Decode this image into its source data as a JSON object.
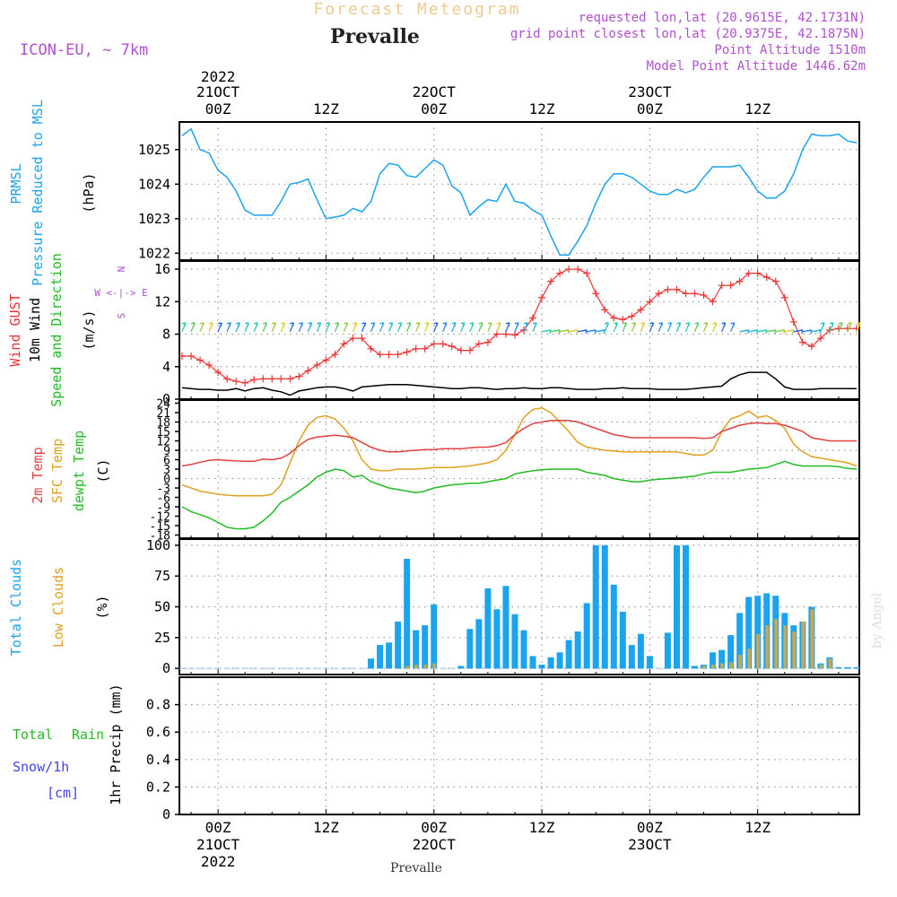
{
  "header": {
    "title": "Forecast Meteogram",
    "location": "Prevalle",
    "model": "ICON-EU, ~ 7km",
    "requested": "requested lon,lat (20.9615E, 42.1731N)",
    "gridpoint": "grid point closest lon,lat (20.9375E, 42.1875N)",
    "point_alt": "Point Altitude 1510m",
    "model_alt": "Model Point Altitude 1446.62m",
    "footer_location": "Prevalle",
    "watermark": "by Angel"
  },
  "colors": {
    "prmsl": "#1aa3ee",
    "gust": "#ee3333",
    "wind": "#000000",
    "temp2m": "#e34040",
    "sfc": "#e0a020",
    "dewpt": "#22bb22",
    "total_clouds": "#1aa3ee",
    "low_clouds": "#c8a850",
    "label_purple": "#b050d0",
    "snow": "#4444ee"
  },
  "time_axis": {
    "top": [
      {
        "h": 0,
        "line1": "2022",
        "line2": "21OCT",
        "line3": "00Z"
      },
      {
        "h": 12,
        "line1": "",
        "line2": "",
        "line3": "12Z"
      },
      {
        "h": 24,
        "line1": "",
        "line2": "22OCT",
        "line3": "00Z"
      },
      {
        "h": 36,
        "line1": "",
        "line2": "",
        "line3": "12Z"
      },
      {
        "h": 48,
        "line1": "",
        "line2": "23OCT",
        "line3": "00Z"
      },
      {
        "h": 60,
        "line1": "",
        "line2": "",
        "line3": "12Z"
      }
    ],
    "bottom": [
      {
        "h": 0,
        "line1": "00Z",
        "line2": "21OCT",
        "line3": "2022"
      },
      {
        "h": 12,
        "line1": "12Z",
        "line2": "",
        "line3": ""
      },
      {
        "h": 24,
        "line1": "00Z",
        "line2": "22OCT",
        "line3": ""
      },
      {
        "h": 36,
        "line1": "12Z",
        "line2": "",
        "line3": ""
      },
      {
        "h": 48,
        "line1": "00Z",
        "line2": "23OCT",
        "line3": ""
      },
      {
        "h": 60,
        "line1": "12Z",
        "line2": "",
        "line3": ""
      }
    ]
  },
  "panels": {
    "pressure": {
      "label1": "PRMSL",
      "label2": "Pressure Reduced to MSL",
      "unit": "(hPa)",
      "ticks": [
        "1022",
        "1023",
        "1024",
        "1025"
      ]
    },
    "wind": {
      "label1": "Wind GUST",
      "label2": "10m Wind",
      "label3": "Speed and Direction",
      "unit": "(m/s)",
      "compass_n": "N",
      "compass_we": "W <-|-> E",
      "compass_s": "S",
      "ticks": [
        "0",
        "4",
        "8",
        "12",
        "16"
      ]
    },
    "temp": {
      "label1": "2m Temp",
      "label2": "SFC Temp",
      "label3": "dewpt Temp",
      "unit": "(C)",
      "ticks": [
        "-18",
        "-15",
        "-12",
        "-9",
        "-6",
        "-3",
        "0",
        "3",
        "6",
        "9",
        "12",
        "15",
        "18",
        "21",
        "24"
      ]
    },
    "clouds": {
      "label1": "Total Clouds",
      "label2": "Low Clouds",
      "unit": "(%)",
      "ticks": [
        "0",
        "25",
        "50",
        "75",
        "100"
      ]
    },
    "precip": {
      "label_total": "Total",
      "label_rain": "Rain",
      "label_snow": "Snow/1h",
      "label_cm": "[cm]",
      "unit": "1hr Precip (mm)",
      "ticks": [
        "0",
        "0.2",
        "0.4",
        "0.6",
        "0.8"
      ]
    }
  },
  "chart_data": [
    {
      "type": "line",
      "title": "PRMSL Pressure Reduced to MSL",
      "ylabel": "hPa",
      "ylim": [
        1021.8,
        1025.8
      ],
      "x": [
        -4,
        -3,
        -2,
        -1,
        0,
        1,
        2,
        3,
        4,
        5,
        6,
        7,
        8,
        9,
        10,
        11,
        12,
        13,
        14,
        15,
        16,
        17,
        18,
        19,
        20,
        21,
        22,
        23,
        24,
        25,
        26,
        27,
        28,
        29,
        30,
        31,
        32,
        33,
        34,
        35,
        36,
        37,
        38,
        39,
        40,
        41,
        42,
        43,
        44,
        45,
        46,
        47,
        48,
        49,
        50,
        51,
        52,
        53,
        54,
        55,
        56,
        57,
        58,
        59,
        60,
        61,
        62,
        63,
        64,
        65,
        66,
        67,
        68,
        69,
        70,
        71
      ],
      "series": [
        {
          "name": "PRMSL",
          "values": [
            1025.4,
            1025.6,
            1025.0,
            1024.9,
            1024.4,
            1024.2,
            1023.8,
            1023.25,
            1023.1,
            1023.1,
            1023.1,
            1023.5,
            1024.0,
            1024.05,
            1024.15,
            1023.55,
            1023.0,
            1023.05,
            1023.1,
            1023.3,
            1023.2,
            1023.5,
            1024.3,
            1024.6,
            1024.55,
            1024.25,
            1024.2,
            1024.45,
            1024.7,
            1024.55,
            1023.95,
            1023.75,
            1023.1,
            1023.35,
            1023.55,
            1023.5,
            1024.0,
            1023.5,
            1023.45,
            1023.25,
            1023.1,
            1022.5,
            1021.95,
            1021.95,
            1022.35,
            1022.8,
            1023.45,
            1024.0,
            1024.3,
            1024.3,
            1024.2,
            1024.0,
            1023.8,
            1023.7,
            1023.7,
            1023.85,
            1023.75,
            1023.85,
            1024.2,
            1024.5,
            1024.5,
            1024.5,
            1024.55,
            1024.2,
            1023.8,
            1023.6,
            1023.6,
            1023.8,
            1024.3,
            1025.0,
            1025.45,
            1025.4,
            1025.4,
            1025.45,
            1025.25,
            1025.2
          ]
        }
      ]
    },
    {
      "type": "line",
      "title": "Wind GUST / 10m Wind Speed",
      "ylabel": "m/s",
      "ylim": [
        0,
        17
      ],
      "x": [
        -4,
        -3,
        -2,
        -1,
        0,
        1,
        2,
        3,
        4,
        5,
        6,
        7,
        8,
        9,
        10,
        11,
        12,
        13,
        14,
        15,
        16,
        17,
        18,
        19,
        20,
        21,
        22,
        23,
        24,
        25,
        26,
        27,
        28,
        29,
        30,
        31,
        32,
        33,
        34,
        35,
        36,
        37,
        38,
        39,
        40,
        41,
        42,
        43,
        44,
        45,
        46,
        47,
        48,
        49,
        50,
        51,
        52,
        53,
        54,
        55,
        56,
        57,
        58,
        59,
        60,
        61,
        62,
        63,
        64,
        65,
        66,
        67,
        68,
        69,
        70,
        71
      ],
      "series": [
        {
          "name": "Wind GUST",
          "values": [
            5.3,
            5.3,
            4.8,
            4.2,
            3.3,
            2.5,
            2.2,
            2.0,
            2.4,
            2.5,
            2.5,
            2.5,
            2.5,
            2.8,
            3.5,
            4.2,
            4.8,
            5.5,
            6.8,
            7.5,
            7.5,
            6.2,
            5.5,
            5.5,
            5.5,
            5.8,
            6.2,
            6.2,
            6.8,
            6.8,
            6.5,
            6.0,
            6.0,
            6.8,
            7.0,
            8.0,
            8.0,
            7.9,
            8.5,
            10.0,
            12.5,
            14.5,
            15.5,
            16.0,
            16.0,
            15.5,
            13.0,
            11.0,
            10.0,
            9.8,
            10.2,
            11.0,
            12.0,
            13.0,
            13.5,
            13.5,
            13.0,
            13.0,
            12.8,
            12.0,
            14.0,
            14.0,
            14.5,
            15.5,
            15.5,
            15.0,
            14.5,
            12.5,
            9.5,
            7.0,
            6.5,
            7.5,
            8.5,
            8.7,
            8.7,
            8.7
          ]
        },
        {
          "name": "10m Wind",
          "values": [
            1.4,
            1.3,
            1.2,
            1.2,
            1.1,
            1.1,
            1.3,
            1.0,
            1.3,
            1.4,
            1.1,
            0.9,
            0.5,
            1.0,
            1.2,
            1.4,
            1.5,
            1.5,
            1.3,
            1.0,
            1.5,
            1.6,
            1.7,
            1.8,
            1.8,
            1.8,
            1.7,
            1.6,
            1.5,
            1.4,
            1.3,
            1.3,
            1.4,
            1.4,
            1.3,
            1.2,
            1.3,
            1.3,
            1.4,
            1.3,
            1.3,
            1.4,
            1.4,
            1.3,
            1.2,
            1.2,
            1.2,
            1.3,
            1.3,
            1.4,
            1.3,
            1.3,
            1.3,
            1.2,
            1.2,
            1.2,
            1.2,
            1.3,
            1.4,
            1.5,
            1.6,
            2.5,
            3.0,
            3.3,
            3.3,
            3.3,
            2.5,
            1.5,
            1.2,
            1.2,
            1.2,
            1.3,
            1.3,
            1.3,
            1.3,
            1.3
          ]
        }
      ]
    },
    {
      "type": "line",
      "title": "2m Temp / SFC Temp / dewpt Temp",
      "ylabel": "C",
      "ylim": [
        -19,
        25
      ],
      "x": [
        -4,
        -3,
        -2,
        -1,
        0,
        1,
        2,
        3,
        4,
        5,
        6,
        7,
        8,
        9,
        10,
        11,
        12,
        13,
        14,
        15,
        16,
        17,
        18,
        19,
        20,
        21,
        22,
        23,
        24,
        25,
        26,
        27,
        28,
        29,
        30,
        31,
        32,
        33,
        34,
        35,
        36,
        37,
        38,
        39,
        40,
        41,
        42,
        43,
        44,
        45,
        46,
        47,
        48,
        49,
        50,
        51,
        52,
        53,
        54,
        55,
        56,
        57,
        58,
        59,
        60,
        61,
        62,
        63,
        64,
        65,
        66,
        67,
        68,
        69,
        70,
        71
      ],
      "series": [
        {
          "name": "2m Temp",
          "values": [
            4.0,
            4.5,
            5.2,
            5.8,
            6.0,
            5.8,
            5.6,
            5.5,
            5.5,
            6.2,
            6.0,
            6.5,
            8.0,
            10.5,
            12.5,
            13.2,
            13.5,
            13.8,
            13.5,
            13.0,
            11.5,
            10.0,
            9.0,
            8.5,
            8.5,
            8.8,
            9.0,
            9.2,
            9.2,
            9.5,
            9.5,
            9.5,
            9.8,
            10.0,
            10.0,
            10.5,
            11.5,
            14.0,
            16.0,
            17.5,
            18.0,
            18.5,
            18.5,
            18.5,
            18.0,
            17.0,
            16.0,
            15.0,
            14.0,
            13.5,
            13.0,
            13.0,
            13.0,
            13.0,
            13.0,
            13.0,
            13.0,
            13.0,
            12.8,
            13.0,
            15.0,
            16.0,
            17.0,
            17.5,
            17.8,
            17.5,
            17.5,
            17.0,
            16.0,
            15.0,
            13.0,
            12.5,
            12.0,
            12.0,
            12.0,
            12.0
          ]
        },
        {
          "name": "SFC Temp",
          "values": [
            -2.0,
            -3.0,
            -4.0,
            -4.5,
            -5.0,
            -5.3,
            -5.5,
            -5.5,
            -5.5,
            -5.5,
            -5.0,
            -2.0,
            5.0,
            12.0,
            17.0,
            19.5,
            20.0,
            19.0,
            16.0,
            12.0,
            6.0,
            3.0,
            2.5,
            2.5,
            3.0,
            3.0,
            3.0,
            3.2,
            3.5,
            3.5,
            3.5,
            3.8,
            4.0,
            4.5,
            5.0,
            6.0,
            9.0,
            14.0,
            19.5,
            22.0,
            22.5,
            21.0,
            18.0,
            15.0,
            11.5,
            10.0,
            9.5,
            9.0,
            8.8,
            8.5,
            8.5,
            8.5,
            8.5,
            8.5,
            8.5,
            8.5,
            8.0,
            7.5,
            7.5,
            9.0,
            15.0,
            19.0,
            20.0,
            21.5,
            19.5,
            20.0,
            18.5,
            16.0,
            11.0,
            8.5,
            7.0,
            6.5,
            6.0,
            5.5,
            5.0,
            4.0
          ]
        },
        {
          "name": "dewpt Temp",
          "values": [
            -9.0,
            -10.5,
            -11.5,
            -12.5,
            -14.0,
            -15.5,
            -16.0,
            -16.0,
            -15.5,
            -13.5,
            -11.0,
            -7.5,
            -6.0,
            -4.0,
            -2.0,
            0.5,
            2.0,
            3.0,
            2.5,
            0.5,
            1.0,
            -1.0,
            -2.0,
            -3.0,
            -3.5,
            -4.0,
            -4.5,
            -4.0,
            -3.0,
            -2.5,
            -2.0,
            -1.8,
            -1.5,
            -1.5,
            -1.0,
            -0.5,
            0.0,
            1.5,
            2.0,
            2.5,
            2.8,
            3.0,
            3.0,
            3.0,
            3.0,
            2.0,
            1.5,
            1.0,
            0.0,
            -0.5,
            -1.0,
            -1.0,
            -0.5,
            -0.2,
            0.0,
            0.2,
            0.5,
            0.8,
            1.5,
            2.0,
            2.0,
            2.0,
            2.5,
            3.0,
            3.2,
            3.5,
            4.5,
            5.5,
            4.5,
            4.0,
            4.0,
            4.0,
            4.0,
            3.8,
            3.2,
            3.0
          ]
        }
      ]
    },
    {
      "type": "bar",
      "title": "Total Clouds / Low Clouds",
      "ylabel": "%",
      "ylim": [
        -5,
        105
      ],
      "x": [
        -4,
        -3,
        -2,
        -1,
        0,
        1,
        2,
        3,
        4,
        5,
        6,
        7,
        8,
        9,
        10,
        11,
        12,
        13,
        14,
        15,
        16,
        17,
        18,
        19,
        20,
        21,
        22,
        23,
        24,
        25,
        26,
        27,
        28,
        29,
        30,
        31,
        32,
        33,
        34,
        35,
        36,
        37,
        38,
        39,
        40,
        41,
        42,
        43,
        44,
        45,
        46,
        47,
        48,
        49,
        50,
        51,
        52,
        53,
        54,
        55,
        56,
        57,
        58,
        59,
        60,
        61,
        62,
        63,
        64,
        65,
        66,
        67,
        68,
        69,
        70,
        71
      ],
      "series": [
        {
          "name": "Total Clouds",
          "values": [
            0,
            0,
            0,
            0,
            0,
            0,
            0,
            0,
            0,
            0,
            0,
            0,
            0,
            0,
            0,
            0,
            0,
            0,
            0,
            0,
            0,
            8,
            19,
            21,
            38,
            89,
            31,
            35,
            52,
            0,
            0,
            2,
            32,
            40,
            65,
            48,
            67,
            44,
            31,
            10,
            3,
            9,
            13,
            23,
            30,
            53,
            100,
            100,
            68,
            46,
            19,
            28,
            10,
            0,
            29,
            100,
            100,
            2,
            3,
            13,
            15,
            27,
            45,
            58,
            59,
            61,
            59,
            45,
            35,
            38,
            50,
            4,
            9,
            1,
            1,
            1
          ]
        },
        {
          "name": "Low Clouds",
          "values": [
            0,
            0,
            0,
            0,
            0,
            0,
            0,
            0,
            0,
            0,
            0,
            0,
            0,
            0,
            0,
            0,
            0,
            0,
            0,
            0,
            0,
            0,
            0,
            0,
            0,
            2,
            3,
            3,
            4,
            0,
            0,
            0,
            0,
            0,
            0,
            0,
            0,
            0,
            0,
            0,
            0,
            0,
            0,
            0,
            0,
            0,
            0,
            0,
            0,
            0,
            0,
            0,
            0,
            0,
            0,
            0,
            0,
            0,
            2,
            3,
            4,
            5,
            11,
            16,
            28,
            35,
            40,
            35,
            30,
            38,
            48,
            3,
            8,
            0,
            0,
            0
          ]
        }
      ]
    },
    {
      "type": "bar",
      "title": "1hr Precip",
      "ylabel": "1hr Precip (mm)",
      "ylim": [
        0,
        1.0
      ],
      "x": [],
      "series": [
        {
          "name": "Total Rain",
          "values": []
        },
        {
          "name": "Snow/1h",
          "values": []
        }
      ]
    }
  ]
}
